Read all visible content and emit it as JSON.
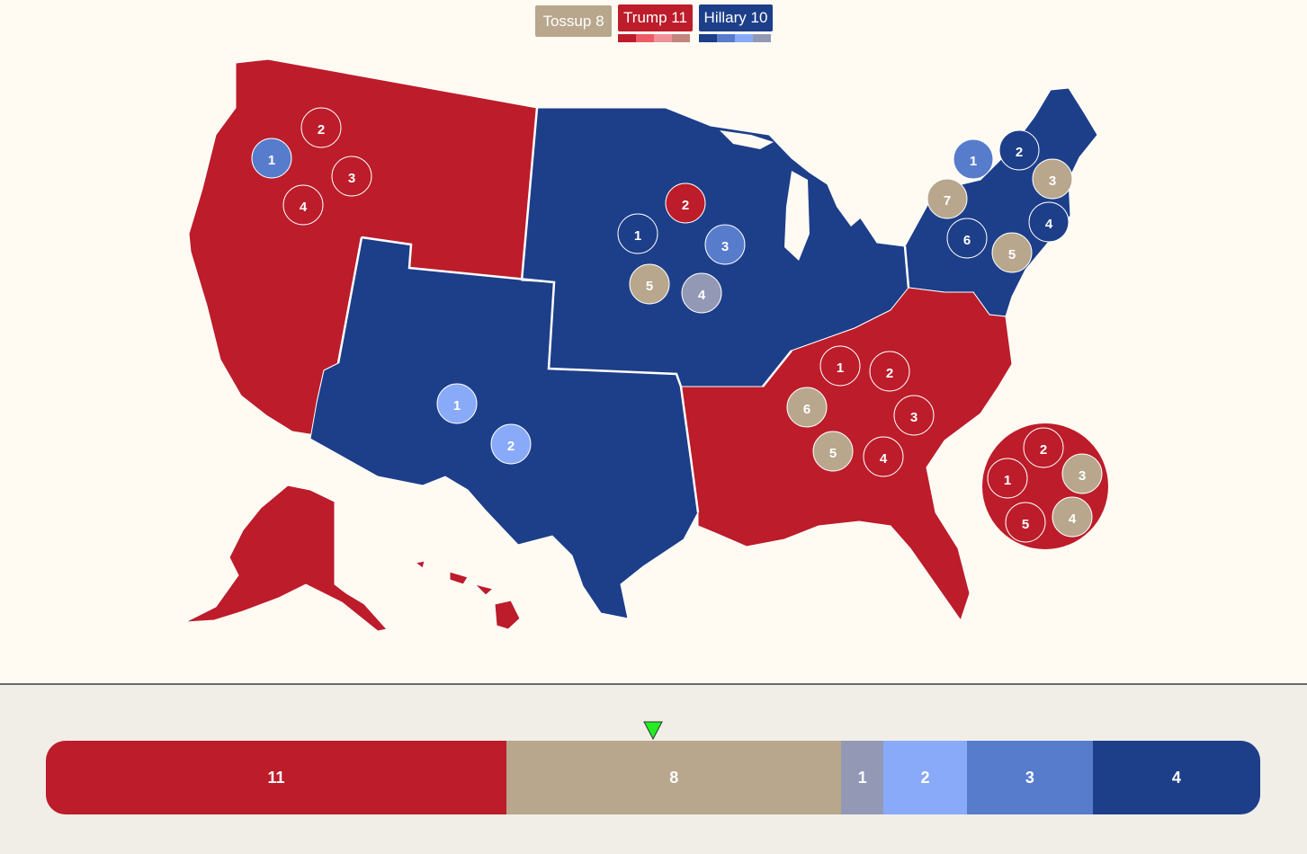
{
  "legend": {
    "tossup": {
      "label": "Tossup",
      "count": "8"
    },
    "trump": {
      "label": "Trump",
      "count": "11"
    },
    "hillary": {
      "label": "Hillary",
      "count": "10"
    }
  },
  "colors": {
    "background": "#fffbf3",
    "panel": "#f1eee8",
    "tossup": "#b8a78d",
    "trump_solid": "#bd1c2a",
    "trump_likely": "#ee5b66",
    "trump_lean": "#f0919a",
    "trump_tilt": "#c4847e",
    "hillary_solid": "#1d3e89",
    "hillary_likely": "#577ccc",
    "hillary_lean": "#89aaf9",
    "hillary_tilt": "#9399b5",
    "pointer": "#22ee22"
  },
  "regions": {
    "west": "trump_solid",
    "southwest": "hillary_solid",
    "midwest": "hillary_solid",
    "northeast": "hillary_solid",
    "southeast": "trump_solid",
    "alaska": "trump_solid",
    "hawaii": "trump_solid"
  },
  "markers": [
    {
      "label": "1",
      "fill": "hillary_likely"
    },
    {
      "label": "2",
      "fill": "trump_solid"
    },
    {
      "label": "3",
      "fill": "trump_solid"
    },
    {
      "label": "4",
      "fill": "trump_solid"
    },
    {
      "label": "1",
      "fill": "hillary_solid"
    },
    {
      "label": "2",
      "fill": "trump_solid"
    },
    {
      "label": "3",
      "fill": "hillary_likely"
    },
    {
      "label": "4",
      "fill": "hillary_tilt"
    },
    {
      "label": "5",
      "fill": "tossup"
    },
    {
      "label": "1",
      "fill": "hillary_lean"
    },
    {
      "label": "2",
      "fill": "hillary_lean"
    },
    {
      "label": "1",
      "fill": "hillary_likely"
    },
    {
      "label": "2",
      "fill": "hillary_solid"
    },
    {
      "label": "3",
      "fill": "tossup"
    },
    {
      "label": "4",
      "fill": "hillary_solid"
    },
    {
      "label": "5",
      "fill": "tossup"
    },
    {
      "label": "6",
      "fill": "hillary_solid"
    },
    {
      "label": "7",
      "fill": "tossup"
    },
    {
      "label": "1",
      "fill": "trump_solid"
    },
    {
      "label": "2",
      "fill": "trump_solid"
    },
    {
      "label": "3",
      "fill": "trump_solid"
    },
    {
      "label": "4",
      "fill": "trump_solid"
    },
    {
      "label": "5",
      "fill": "tossup"
    },
    {
      "label": "6",
      "fill": "tossup"
    },
    {
      "label": "1",
      "fill": "trump_solid"
    },
    {
      "label": "2",
      "fill": "trump_solid"
    },
    {
      "label": "3",
      "fill": "tossup"
    },
    {
      "label": "4",
      "fill": "tossup"
    },
    {
      "label": "5",
      "fill": "trump_solid"
    }
  ],
  "bar_segments": [
    {
      "label": "11",
      "count": 11,
      "fill": "trump_solid"
    },
    {
      "label": "8",
      "count": 8,
      "fill": "tossup"
    },
    {
      "label": "1",
      "count": 1,
      "fill": "hillary_tilt"
    },
    {
      "label": "2",
      "count": 2,
      "fill": "hillary_lean"
    },
    {
      "label": "3",
      "count": 3,
      "fill": "hillary_likely"
    },
    {
      "label": "4",
      "count": 4,
      "fill": "hillary_solid"
    }
  ]
}
